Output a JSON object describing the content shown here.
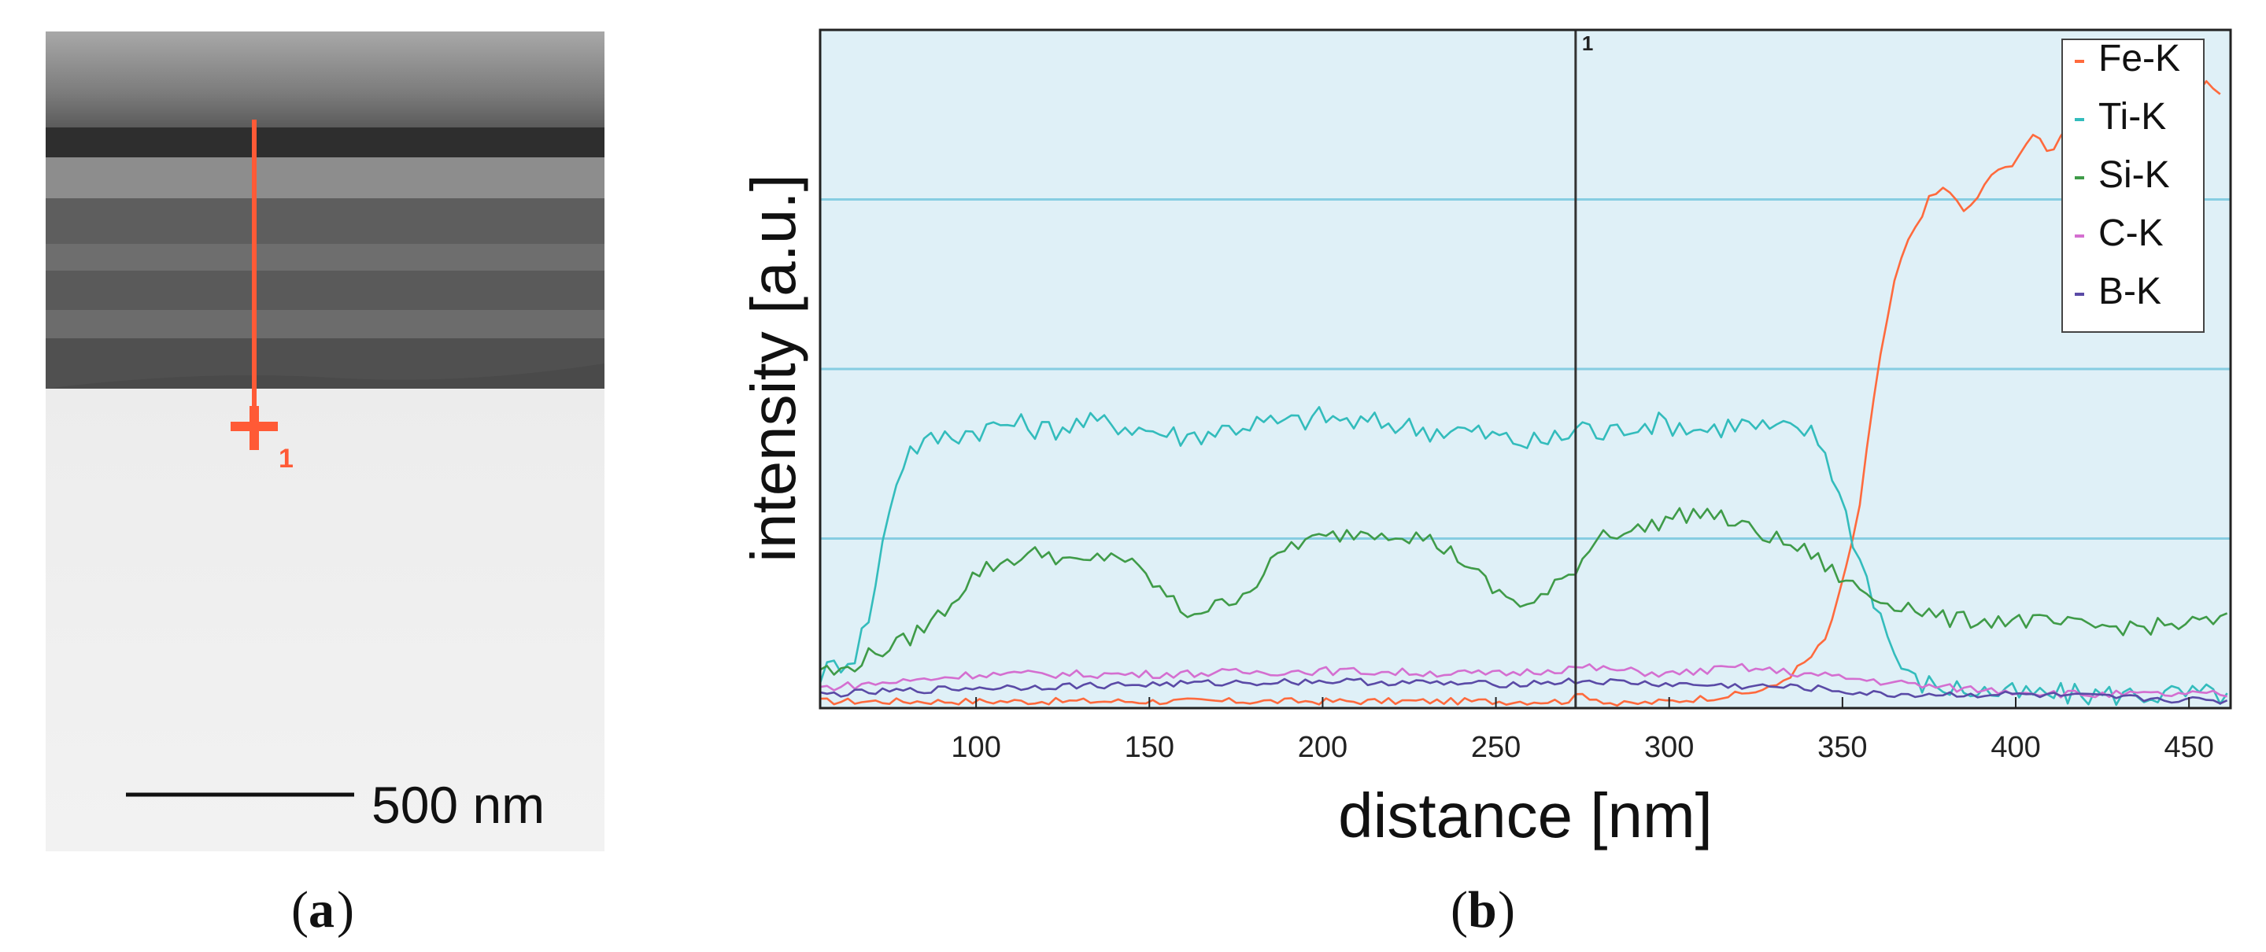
{
  "panel_a": {
    "scale_bar_label": "500 nm",
    "marker_label": "1",
    "caption": "a",
    "colors": {
      "line": "#ff5a36"
    }
  },
  "panel_b": {
    "caption": "b",
    "cursor_label": "1"
  },
  "chart_data": {
    "type": "line",
    "title": "",
    "xlabel": "distance [nm]",
    "ylabel": "intensity [a.u.]",
    "xlim": [
      55,
      462
    ],
    "ylim": [
      0,
      1.0
    ],
    "xticks": [
      100,
      150,
      200,
      250,
      300,
      350,
      400,
      450
    ],
    "y_gridlines": [
      0.25,
      0.5,
      0.75,
      1.0
    ],
    "show_y_tick_labels": false,
    "grid": true,
    "legend": "top-right",
    "cursor_x": 273,
    "series": [
      {
        "name": "Fe-K",
        "color": "#ff6a3d",
        "points": [
          [
            55,
            0.01
          ],
          [
            100,
            0.01
          ],
          [
            150,
            0.01
          ],
          [
            200,
            0.01
          ],
          [
            250,
            0.01
          ],
          [
            270,
            0.01
          ],
          [
            275,
            0.02
          ],
          [
            285,
            0.005
          ],
          [
            300,
            0.01
          ],
          [
            320,
            0.02
          ],
          [
            330,
            0.03
          ],
          [
            340,
            0.07
          ],
          [
            345,
            0.1
          ],
          [
            350,
            0.18
          ],
          [
            355,
            0.3
          ],
          [
            358,
            0.42
          ],
          [
            362,
            0.55
          ],
          [
            366,
            0.65
          ],
          [
            370,
            0.7
          ],
          [
            375,
            0.75
          ],
          [
            380,
            0.77
          ],
          [
            385,
            0.73
          ],
          [
            390,
            0.76
          ],
          [
            395,
            0.8
          ],
          [
            400,
            0.8
          ],
          [
            405,
            0.85
          ],
          [
            410,
            0.82
          ],
          [
            415,
            0.86
          ],
          [
            420,
            0.84
          ],
          [
            425,
            0.87
          ],
          [
            430,
            0.85
          ],
          [
            435,
            0.88
          ],
          [
            440,
            0.86
          ],
          [
            445,
            0.9
          ],
          [
            450,
            0.88
          ],
          [
            455,
            0.93
          ],
          [
            460,
            0.9
          ]
        ]
      },
      {
        "name": "Ti-K",
        "color": "#33bcbc",
        "points": [
          [
            55,
            0.05
          ],
          [
            65,
            0.08
          ],
          [
            70,
            0.15
          ],
          [
            75,
            0.3
          ],
          [
            80,
            0.38
          ],
          [
            90,
            0.4
          ],
          [
            100,
            0.41
          ],
          [
            110,
            0.42
          ],
          [
            120,
            0.41
          ],
          [
            130,
            0.42
          ],
          [
            140,
            0.42
          ],
          [
            150,
            0.41
          ],
          [
            160,
            0.4
          ],
          [
            170,
            0.41
          ],
          [
            180,
            0.42
          ],
          [
            190,
            0.42
          ],
          [
            200,
            0.43
          ],
          [
            210,
            0.42
          ],
          [
            220,
            0.42
          ],
          [
            230,
            0.41
          ],
          [
            240,
            0.41
          ],
          [
            250,
            0.4
          ],
          [
            260,
            0.39
          ],
          [
            270,
            0.4
          ],
          [
            275,
            0.42
          ],
          [
            280,
            0.4
          ],
          [
            290,
            0.42
          ],
          [
            300,
            0.42
          ],
          [
            310,
            0.41
          ],
          [
            320,
            0.42
          ],
          [
            330,
            0.41
          ],
          [
            340,
            0.41
          ],
          [
            345,
            0.38
          ],
          [
            350,
            0.3
          ],
          [
            355,
            0.22
          ],
          [
            360,
            0.15
          ],
          [
            365,
            0.08
          ],
          [
            370,
            0.04
          ],
          [
            380,
            0.03
          ],
          [
            400,
            0.02
          ],
          [
            420,
            0.02
          ],
          [
            440,
            0.02
          ],
          [
            462,
            0.02
          ]
        ]
      },
      {
        "name": "Si-K",
        "color": "#3f9b48",
        "points": [
          [
            55,
            0.06
          ],
          [
            60,
            0.05
          ],
          [
            70,
            0.08
          ],
          [
            80,
            0.1
          ],
          [
            90,
            0.14
          ],
          [
            100,
            0.2
          ],
          [
            110,
            0.22
          ],
          [
            120,
            0.23
          ],
          [
            130,
            0.21
          ],
          [
            140,
            0.23
          ],
          [
            150,
            0.19
          ],
          [
            160,
            0.14
          ],
          [
            170,
            0.15
          ],
          [
            180,
            0.18
          ],
          [
            190,
            0.24
          ],
          [
            200,
            0.25
          ],
          [
            210,
            0.26
          ],
          [
            220,
            0.26
          ],
          [
            230,
            0.25
          ],
          [
            240,
            0.22
          ],
          [
            250,
            0.17
          ],
          [
            260,
            0.15
          ],
          [
            270,
            0.19
          ],
          [
            275,
            0.22
          ],
          [
            280,
            0.26
          ],
          [
            290,
            0.26
          ],
          [
            300,
            0.28
          ],
          [
            310,
            0.29
          ],
          [
            320,
            0.27
          ],
          [
            330,
            0.25
          ],
          [
            340,
            0.23
          ],
          [
            345,
            0.21
          ],
          [
            350,
            0.19
          ],
          [
            360,
            0.16
          ],
          [
            370,
            0.15
          ],
          [
            380,
            0.13
          ],
          [
            400,
            0.13
          ],
          [
            420,
            0.12
          ],
          [
            440,
            0.12
          ],
          [
            462,
            0.13
          ]
        ]
      },
      {
        "name": "C-K",
        "color": "#d46fd0",
        "points": [
          [
            55,
            0.03
          ],
          [
            80,
            0.04
          ],
          [
            100,
            0.05
          ],
          [
            150,
            0.05
          ],
          [
            200,
            0.055
          ],
          [
            250,
            0.05
          ],
          [
            275,
            0.06
          ],
          [
            300,
            0.05
          ],
          [
            320,
            0.06
          ],
          [
            340,
            0.05
          ],
          [
            360,
            0.04
          ],
          [
            380,
            0.03
          ],
          [
            420,
            0.02
          ],
          [
            462,
            0.02
          ]
        ]
      },
      {
        "name": "B-K",
        "color": "#5a4aa6",
        "points": [
          [
            55,
            0.02
          ],
          [
            100,
            0.03
          ],
          [
            150,
            0.035
          ],
          [
            200,
            0.04
          ],
          [
            250,
            0.035
          ],
          [
            275,
            0.04
          ],
          [
            300,
            0.035
          ],
          [
            340,
            0.03
          ],
          [
            360,
            0.02
          ],
          [
            400,
            0.02
          ],
          [
            462,
            0.01
          ]
        ]
      }
    ]
  }
}
